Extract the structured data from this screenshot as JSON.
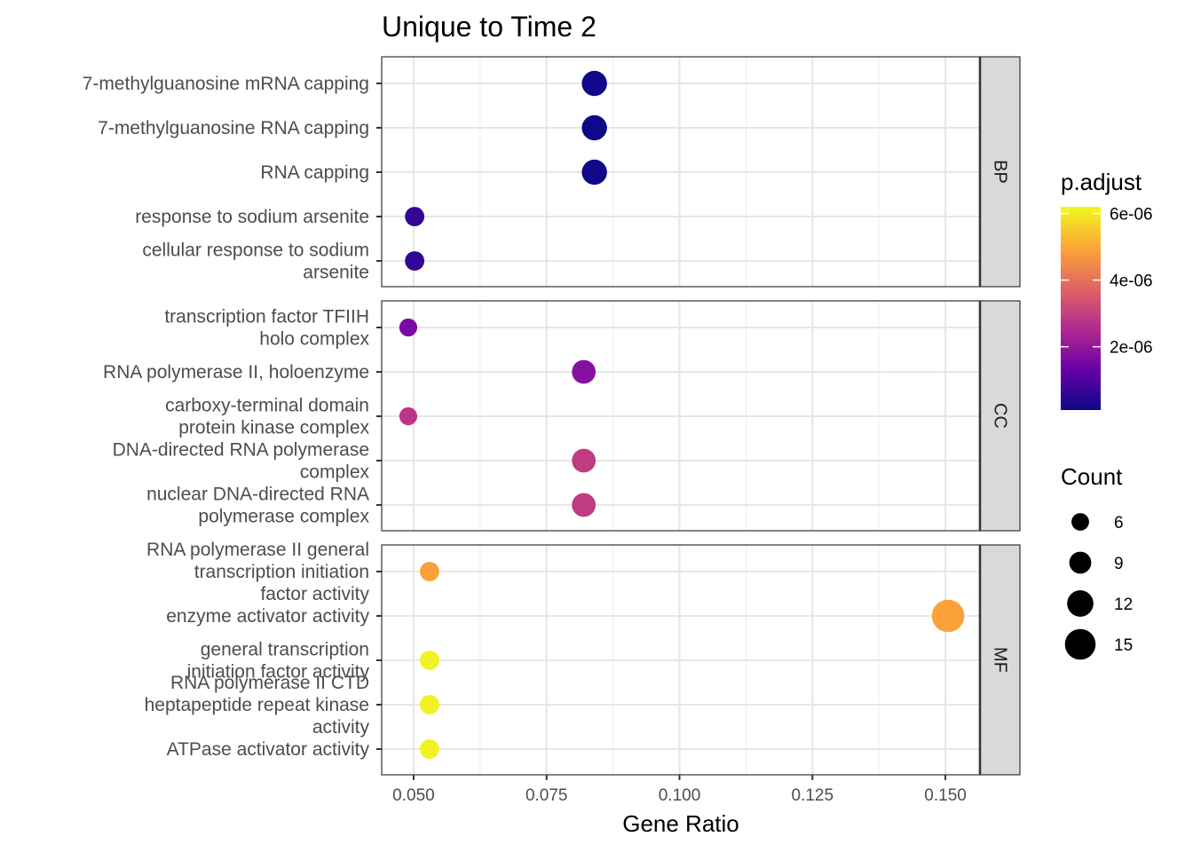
{
  "chart_data": {
    "type": "scatter",
    "title": "Unique to Time 2",
    "xlabel": "Gene Ratio",
    "ylabel": "",
    "xlim": [
      0.044,
      0.1565
    ],
    "xticks": [
      "0.050",
      "0.075",
      "0.100",
      "0.125",
      "0.150"
    ],
    "xtick_values": [
      0.05,
      0.075,
      0.1,
      0.125,
      0.15
    ],
    "color_scale": {
      "title": "p.adjust",
      "name": "plasma",
      "range": [
        1e-07,
        6.2e-06
      ],
      "ticks": [
        "2e-06",
        "4e-06",
        "6e-06"
      ],
      "tick_values": [
        2e-06,
        4e-06,
        6e-06
      ],
      "stops": [
        "#0d0887",
        "#6a00a8",
        "#b12a90",
        "#e16462",
        "#fca636",
        "#f0f921"
      ]
    },
    "size_scale": {
      "title": "Count",
      "ticks": [
        "6",
        "9",
        "12",
        "15"
      ],
      "tick_values": [
        6,
        9,
        12,
        15
      ]
    },
    "legend_position": "right",
    "grid": true,
    "facets": [
      {
        "label": "BP",
        "points": [
          {
            "term": "7-methylguanosine mRNA capping",
            "x": 0.084,
            "count": 10,
            "p_adjust": 1.2e-07
          },
          {
            "term": "7-methylguanosine RNA capping",
            "x": 0.084,
            "count": 10,
            "p_adjust": 1.2e-07
          },
          {
            "term": "RNA capping",
            "x": 0.084,
            "count": 10,
            "p_adjust": 1.3e-07
          },
          {
            "term": "response to sodium arsenite",
            "x": 0.0502,
            "count": 6,
            "p_adjust": 6e-07
          },
          {
            "term": "cellular response to sodium arsenite",
            "x": 0.0502,
            "count": 6,
            "p_adjust": 6e-07
          }
        ]
      },
      {
        "label": "CC",
        "points": [
          {
            "term": "transcription factor TFIIH holo complex",
            "x": 0.049,
            "count": 5,
            "p_adjust": 1.6e-06
          },
          {
            "term": "RNA polymerase II, holoenzyme",
            "x": 0.082,
            "count": 9,
            "p_adjust": 1.8e-06
          },
          {
            "term": "carboxy-terminal domain protein kinase complex",
            "x": 0.049,
            "count": 5,
            "p_adjust": 2.8e-06
          },
          {
            "term": "DNA-directed RNA polymerase complex",
            "x": 0.082,
            "count": 9,
            "p_adjust": 2.9e-06
          },
          {
            "term": "nuclear DNA-directed RNA polymerase complex",
            "x": 0.082,
            "count": 9,
            "p_adjust": 2.9e-06
          }
        ]
      },
      {
        "label": "MF",
        "points": [
          {
            "term": "RNA polymerase II general transcription initiation factor activity",
            "x": 0.053,
            "count": 6,
            "p_adjust": 4.9e-06
          },
          {
            "term": "enzyme activator activity",
            "x": 0.1505,
            "count": 15,
            "p_adjust": 4.9e-06
          },
          {
            "term": "general transcription initiation factor activity",
            "x": 0.053,
            "count": 6,
            "p_adjust": 6.1e-06
          },
          {
            "term": "RNA polymerase II CTD heptapeptide repeat kinase activity",
            "x": 0.053,
            "count": 6,
            "p_adjust": 6.1e-06
          },
          {
            "term": "ATPase activator activity",
            "x": 0.053,
            "count": 6,
            "p_adjust": 6.1e-06
          }
        ]
      }
    ],
    "wrapped_labels": {
      "cellular response to sodium arsenite": [
        "cellular response to sodium",
        "arsenite"
      ],
      "transcription factor TFIIH holo complex": [
        "transcription factor TFIIH",
        "holo complex"
      ],
      "carboxy-terminal domain protein kinase complex": [
        "carboxy-terminal domain",
        "protein kinase complex"
      ],
      "DNA-directed RNA polymerase complex": [
        "DNA-directed RNA polymerase",
        "complex"
      ],
      "nuclear DNA-directed RNA polymerase complex": [
        "nuclear DNA-directed RNA",
        "polymerase complex"
      ],
      "RNA polymerase II general transcription initiation factor activity": [
        "RNA polymerase II general",
        "transcription initiation",
        "factor activity"
      ],
      "general transcription initiation factor activity": [
        "general transcription",
        "initiation factor activity"
      ],
      "RNA polymerase II CTD heptapeptide repeat kinase activity": [
        "RNA polymerase II CTD",
        "heptapeptide repeat kinase",
        "activity"
      ]
    }
  }
}
